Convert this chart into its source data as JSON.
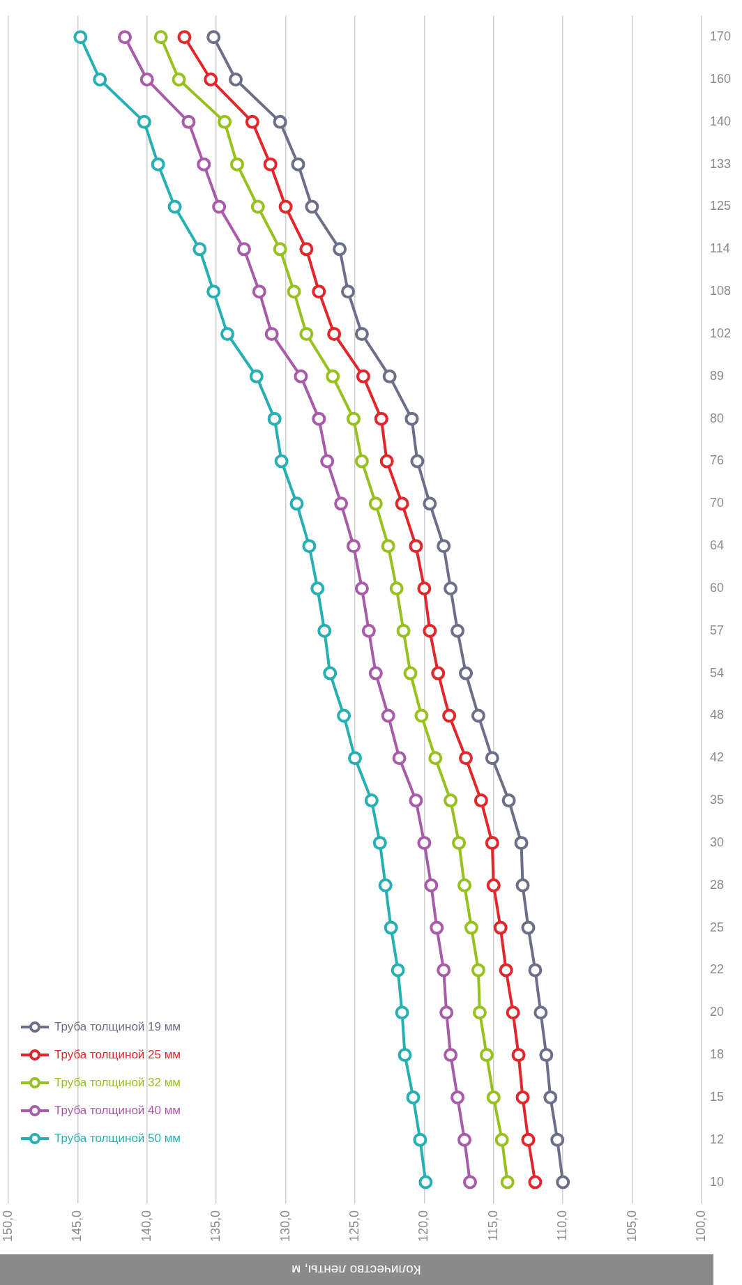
{
  "chart_data": {
    "type": "line",
    "orientation": "horizontal",
    "xlabel": "Количество ленты, м",
    "categories": [
      "170",
      "160",
      "140",
      "133",
      "125",
      "114",
      "108",
      "102",
      "89",
      "80",
      "76",
      "70",
      "64",
      "60",
      "57",
      "54",
      "48",
      "42",
      "35",
      "30",
      "28",
      "25",
      "22",
      "20",
      "18",
      "15",
      "12",
      "10"
    ],
    "series": [
      {
        "name": "Труба толщиной 19 мм",
        "color": "#6b7088",
        "values": [
          135.2,
          133.6,
          130.4,
          129.1,
          128.1,
          126.1,
          125.5,
          124.5,
          122.5,
          120.9,
          120.5,
          119.6,
          118.6,
          118.1,
          117.6,
          117.0,
          116.1,
          115.1,
          113.9,
          113.0,
          112.9,
          112.5,
          112.0,
          111.6,
          111.2,
          110.9,
          110.4,
          110.0
        ]
      },
      {
        "name": "Труба толщиной 25 мм",
        "color": "#e3262b",
        "values": [
          137.3,
          135.4,
          132.4,
          131.1,
          130.0,
          128.5,
          127.6,
          126.5,
          124.4,
          123.1,
          122.7,
          121.6,
          120.6,
          120.0,
          119.6,
          119.0,
          118.2,
          117.0,
          115.9,
          115.1,
          115.0,
          114.5,
          114.1,
          113.6,
          113.2,
          112.9,
          112.5,
          112.0
        ]
      },
      {
        "name": "Труба толщиной 32 мм",
        "color": "#97c11f",
        "values": [
          139.0,
          137.7,
          134.4,
          133.5,
          132.0,
          130.4,
          129.4,
          128.5,
          126.6,
          125.1,
          124.5,
          123.5,
          122.6,
          122.0,
          121.5,
          121.0,
          120.2,
          119.2,
          118.1,
          117.5,
          117.1,
          116.6,
          116.1,
          116.0,
          115.5,
          115.0,
          114.4,
          114.0
        ]
      },
      {
        "name": "Труба толщиной 40 мм",
        "color": "#a85ba8",
        "values": [
          141.6,
          140.0,
          137.0,
          135.9,
          134.8,
          133.0,
          131.9,
          131.0,
          128.9,
          127.6,
          127.0,
          126.0,
          125.1,
          124.5,
          124.0,
          123.5,
          122.6,
          121.8,
          120.6,
          120.0,
          119.5,
          119.1,
          118.6,
          118.4,
          118.1,
          117.6,
          117.1,
          116.7
        ]
      },
      {
        "name": "Труба толщиной 50 мм",
        "color": "#26b0b3",
        "values": [
          144.8,
          143.4,
          140.2,
          139.2,
          138.0,
          136.2,
          135.2,
          134.2,
          132.1,
          130.8,
          130.3,
          129.2,
          128.3,
          127.7,
          127.2,
          126.8,
          125.8,
          125.0,
          123.8,
          123.2,
          122.8,
          122.4,
          121.9,
          121.6,
          121.4,
          120.8,
          120.3,
          119.9
        ]
      }
    ],
    "xlim": [
      150,
      100
    ],
    "xticks": [
      {
        "value": 150,
        "label": "150,0"
      },
      {
        "value": 145,
        "label": "145,0"
      },
      {
        "value": 140,
        "label": "140,0"
      },
      {
        "value": 135,
        "label": "135,0"
      },
      {
        "value": 130,
        "label": "130,0"
      },
      {
        "value": 125,
        "label": "125,0"
      },
      {
        "value": 120,
        "label": "120,0"
      },
      {
        "value": 115,
        "label": "115,0"
      },
      {
        "value": 110,
        "label": "110,0"
      },
      {
        "value": 105,
        "label": "105,0"
      },
      {
        "value": 100,
        "label": "100,0"
      }
    ],
    "grid": "x",
    "legend": "bottom left",
    "marker": "circle",
    "line_style": "solid"
  }
}
